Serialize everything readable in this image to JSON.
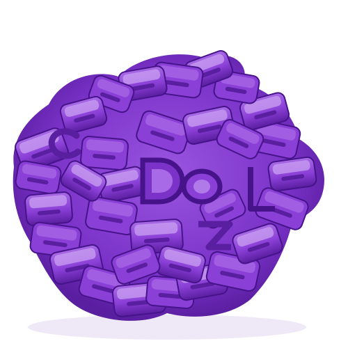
{
  "image": {
    "subject": "purple-plastic-letter-cutters",
    "background_color": "#ffffff",
    "colors": {
      "base": "#8a3fd6",
      "dark": "#5a1ea0",
      "darker": "#46138a",
      "light": "#a86ae6",
      "highlight": "#c9a0f2",
      "shadow": "#e9e0f2"
    },
    "visible_letters": [
      "D",
      "O",
      "Z",
      "C",
      "L"
    ]
  }
}
